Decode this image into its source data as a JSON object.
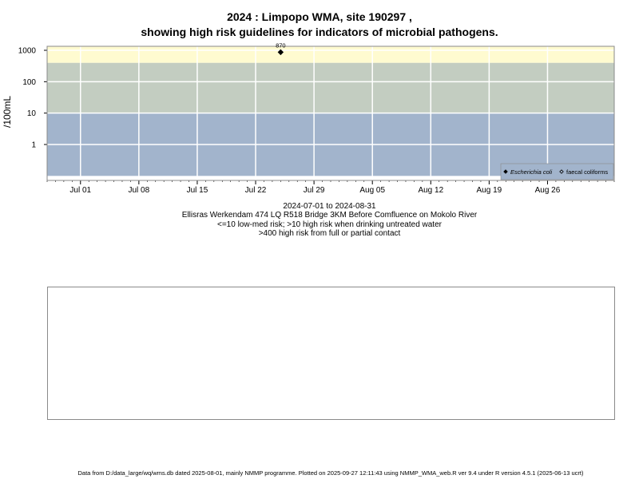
{
  "title_line1": "2024 : Limpopo WMA, site 190297 ,",
  "title_line2": "showing high risk guidelines for indicators of microbial pathogens.",
  "caption": {
    "date_range": "2024-07-01 to 2024-08-31",
    "site": "Ellisras Werkendam 474 LQ R518 Bridge 3KM Before Comfluence on Mokolo River",
    "risk_line1": "<=10 low-med risk; >10 high risk when drinking untreated water",
    "risk_line2": ">400 high risk from full or partial contact"
  },
  "footer": "Data from D:/data_large/wq/wms.db dated 2025-08-01, mainly NMMP programme. Plotted on 2025-09-27 12:11:43 using NMMP_WMA_web.R ver 9.4 under R version 4.5.1 (2025-06-13 ucrt)",
  "colors": {
    "band_low": "#a2b4cc",
    "band_mid": "#c3cdc1",
    "band_high": "#fffbd0",
    "grid": "#ffffff",
    "frame": "#8a8a8a"
  },
  "chart_data": {
    "type": "scatter",
    "y_scale": "log",
    "ylabel": "/100mL",
    "xlim": [
      "2024-06-27",
      "2024-09-03"
    ],
    "y_ticks": [
      {
        "value": 1,
        "label": "1"
      },
      {
        "value": 10,
        "label": "10"
      },
      {
        "value": 100,
        "label": "100"
      },
      {
        "value": 1000,
        "label": "1000"
      }
    ],
    "x_ticks": [
      {
        "date": "2024-07-01",
        "label": "Jul 01"
      },
      {
        "date": "2024-07-08",
        "label": "Jul 08"
      },
      {
        "date": "2024-07-15",
        "label": "Jul 15"
      },
      {
        "date": "2024-07-22",
        "label": "Jul 22"
      },
      {
        "date": "2024-07-29",
        "label": "Jul 29"
      },
      {
        "date": "2024-08-05",
        "label": "Aug 05"
      },
      {
        "date": "2024-08-12",
        "label": "Aug 12"
      },
      {
        "date": "2024-08-19",
        "label": "Aug 19"
      },
      {
        "date": "2024-08-26",
        "label": "Aug 26"
      }
    ],
    "bands": [
      {
        "from": 0.1,
        "to": 10,
        "color": "#a2b4cc"
      },
      {
        "from": 10,
        "to": 400,
        "color": "#c3cdc1"
      },
      {
        "from": 400,
        "to": 2000,
        "color": "#fffbd0"
      }
    ],
    "grid": true,
    "legend_placement": "bottom-right",
    "series": [
      {
        "name": "Escherichia coli",
        "marker": "filled-diamond",
        "points": [
          {
            "date": "2024-07-25",
            "y": 870,
            "label": "870"
          }
        ]
      },
      {
        "name": "faecal coliforms",
        "marker": "open-diamond",
        "points": []
      }
    ]
  }
}
